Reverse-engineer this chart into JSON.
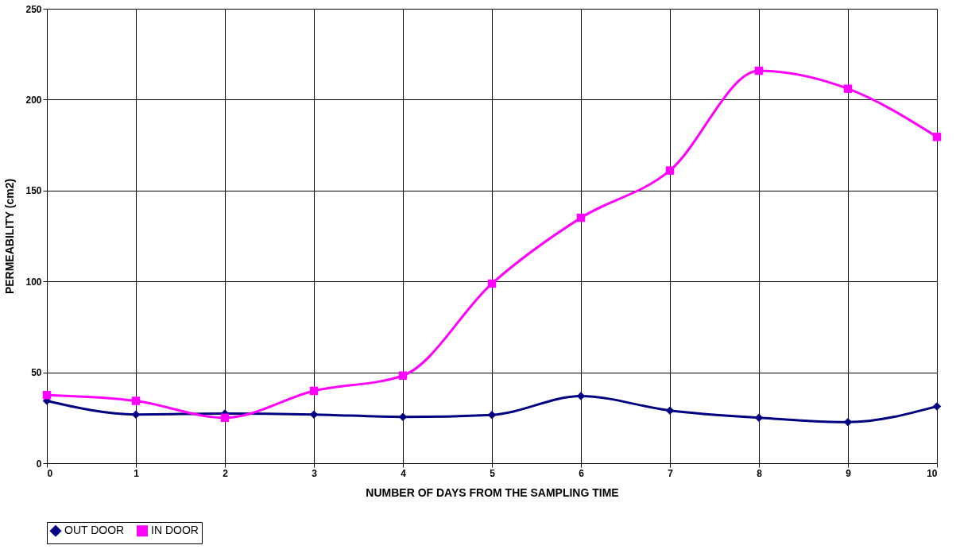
{
  "chart_data": {
    "type": "line",
    "xlabel": "NUMBER OF DAYS FROM THE SAMPLING TIME",
    "ylabel": "PERMEABILITY (cm2)",
    "x": [
      0,
      1,
      2,
      3,
      4,
      5,
      6,
      7,
      8,
      9,
      10
    ],
    "xlim": [
      0,
      10
    ],
    "xticks": [
      0,
      1,
      2,
      3,
      4,
      5,
      6,
      7,
      8,
      9,
      10
    ],
    "ylim": [
      0,
      250
    ],
    "yticks": [
      0,
      50,
      100,
      150,
      200,
      250
    ],
    "grid": true,
    "legend": "bottom",
    "series": [
      {
        "name": "OUT DOOR",
        "color": "#000080",
        "marker": "diamond",
        "values": [
          34.3,
          26.8,
          27.3,
          26.8,
          25.5,
          26.6,
          36.9,
          29,
          25,
          22.6,
          31.3
        ]
      },
      {
        "name": "IN DOOR",
        "color": "#ff00ff",
        "marker": "square",
        "values": [
          37.5,
          34.3,
          25,
          39.8,
          48.2,
          98.8,
          135,
          161,
          215.9,
          206,
          179.5
        ]
      }
    ]
  }
}
